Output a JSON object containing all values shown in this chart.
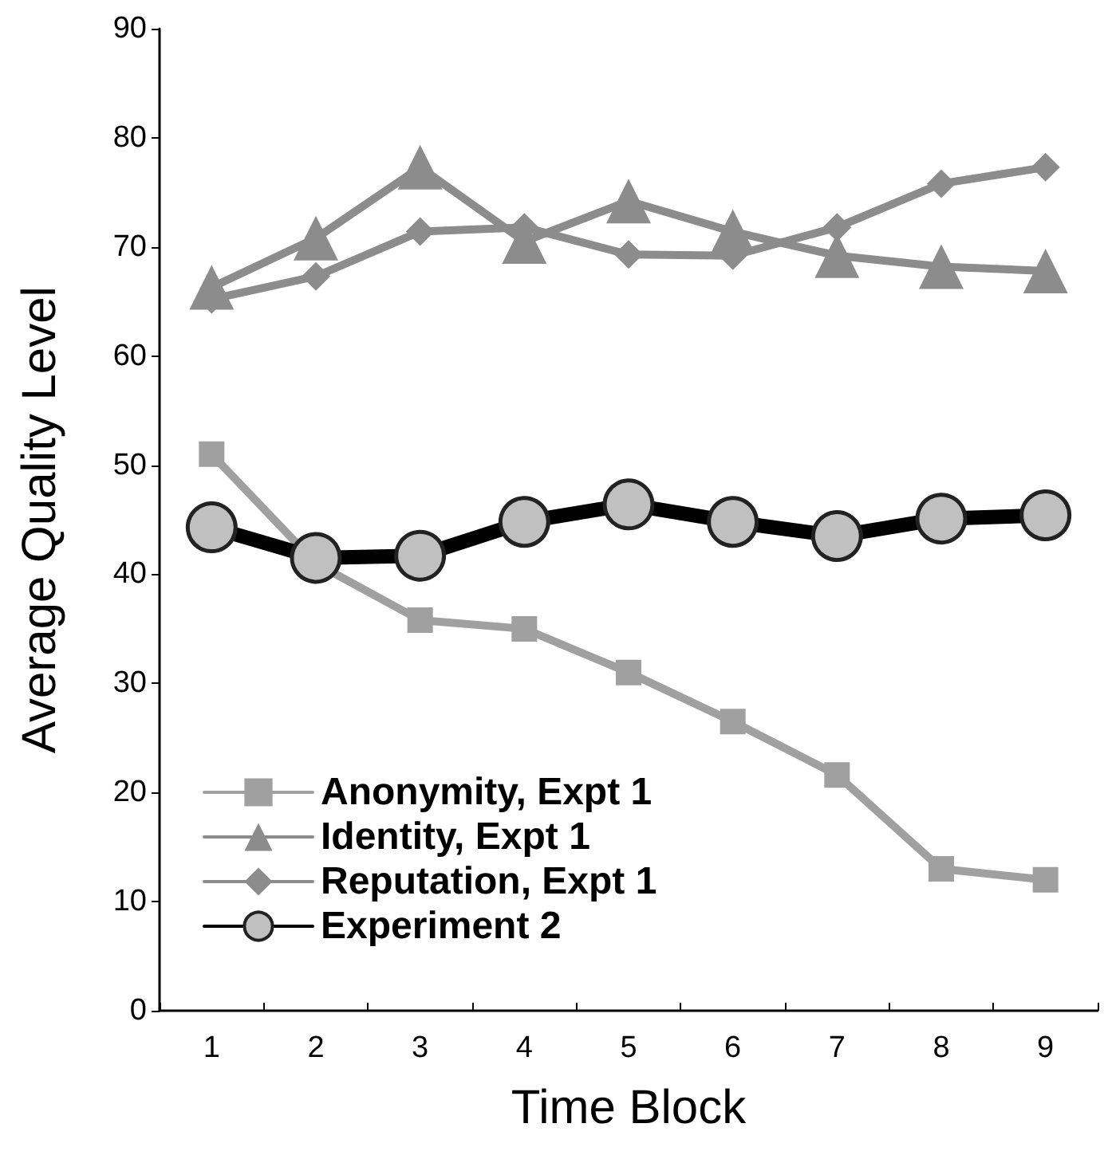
{
  "chart_data": {
    "type": "line",
    "xlabel": "Time Block",
    "ylabel": "Average Quality Level",
    "categories": [
      "1",
      "2",
      "3",
      "4",
      "5",
      "6",
      "7",
      "8",
      "9"
    ],
    "series": [
      {
        "name": "Anonymity, Expt 1",
        "color": "#a0a0a0",
        "marker": "square",
        "values": [
          51,
          41,
          35.8,
          35,
          31,
          26.5,
          21.6,
          13,
          12
        ]
      },
      {
        "name": "Identity, Expt 1",
        "color": "#8c8c8c",
        "marker": "triangle",
        "values": [
          66.3,
          70.8,
          77.3,
          70.5,
          74.2,
          71.4,
          69.2,
          68.2,
          67.8
        ]
      },
      {
        "name": "Reputation, Expt 1",
        "color": "#8c8c8c",
        "marker": "diamond",
        "values": [
          65.2,
          67.3,
          71.4,
          71.8,
          69.3,
          69.2,
          71.8,
          75.8,
          77.3
        ]
      },
      {
        "name": "Experiment 2",
        "color": "#000000",
        "marker": "circle",
        "values": [
          44.3,
          41.5,
          41.7,
          44.8,
          46.4,
          44.8,
          43.5,
          45.1,
          45.4
        ]
      }
    ],
    "ylim": [
      0,
      90
    ],
    "yticks": [
      0,
      10,
      20,
      30,
      40,
      50,
      60,
      70,
      80,
      90
    ],
    "grid": false,
    "legend": "bottom left",
    "line_style": "solid"
  }
}
